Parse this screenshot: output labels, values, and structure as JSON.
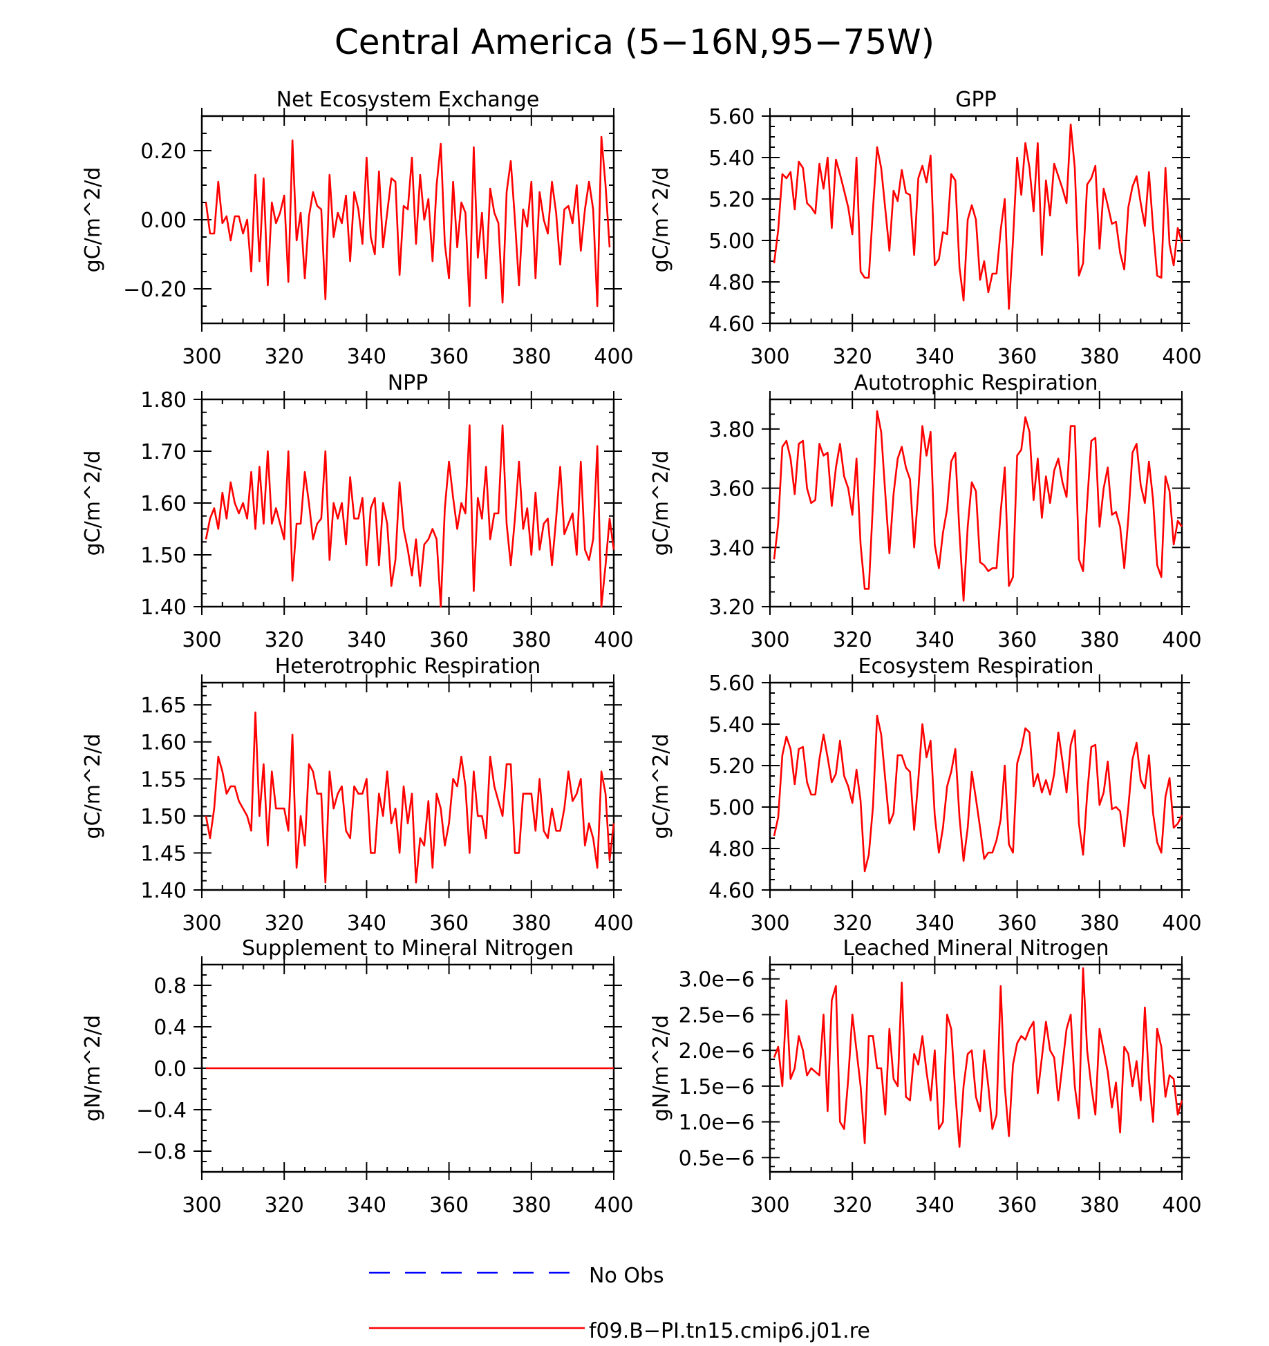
{
  "figure": {
    "title": "Central America (5−16N,95−75W)"
  },
  "legend": {
    "entries": [
      {
        "label": "No Obs",
        "color": "#0000ff",
        "style": "dashed"
      },
      {
        "label": "f09.B−PI.tn15.cmip6.j01.re",
        "color": "#ff0000",
        "style": "solid"
      }
    ]
  },
  "chart_data": [
    {
      "type": "line",
      "title": "Net Ecosystem Exchange",
      "ylabel": "gC/m^2/d",
      "xlim": [
        300,
        400
      ],
      "ylim": [
        -0.3,
        0.3
      ],
      "xticks": [
        300,
        320,
        340,
        360,
        380,
        400
      ],
      "xtick_labels": [
        "300",
        "320",
        "340",
        "360",
        "380",
        "400"
      ],
      "yticks": [
        -0.2,
        0.0,
        0.2
      ],
      "ytick_labels": [
        "−0.20",
        "0.00",
        "0.20"
      ],
      "x_start": 301,
      "color": "#ff0000",
      "values": [
        0.05,
        -0.04,
        -0.04,
        0.11,
        -0.01,
        0.01,
        -0.06,
        0.01,
        0.01,
        -0.04,
        0.0,
        -0.15,
        0.13,
        -0.12,
        0.12,
        -0.19,
        0.05,
        -0.01,
        0.02,
        0.07,
        -0.18,
        0.23,
        -0.06,
        0.02,
        -0.17,
        0.01,
        0.08,
        0.04,
        0.03,
        -0.23,
        0.13,
        -0.05,
        0.02,
        -0.01,
        0.07,
        -0.12,
        0.08,
        0.03,
        -0.07,
        0.18,
        -0.05,
        -0.1,
        0.14,
        -0.08,
        0.02,
        0.12,
        0.11,
        -0.16,
        0.04,
        0.03,
        0.18,
        -0.07,
        0.13,
        0.0,
        0.06,
        -0.12,
        0.1,
        0.22,
        -0.07,
        -0.17,
        0.11,
        -0.08,
        0.05,
        0.02,
        -0.25,
        0.21,
        -0.11,
        0.02,
        -0.17,
        0.09,
        0.02,
        -0.01,
        -0.24,
        0.08,
        0.17,
        0.0,
        -0.19,
        0.03,
        -0.02,
        0.11,
        -0.17,
        0.08,
        0.0,
        -0.04,
        0.11,
        0.02,
        -0.13,
        0.03,
        0.04,
        -0.01,
        0.1,
        -0.09,
        0.03,
        0.11,
        0.03,
        -0.25,
        0.24,
        0.1,
        -0.08
      ]
    },
    {
      "type": "line",
      "title": "GPP",
      "ylabel": "gC/m^2/d",
      "xlim": [
        300,
        400
      ],
      "ylim": [
        4.6,
        5.6
      ],
      "xticks": [
        300,
        320,
        340,
        360,
        380,
        400
      ],
      "xtick_labels": [
        "300",
        "320",
        "340",
        "360",
        "380",
        "400"
      ],
      "yticks": [
        4.6,
        4.8,
        5.0,
        5.2,
        5.4,
        5.6
      ],
      "ytick_labels": [
        "4.60",
        "4.80",
        "5.00",
        "5.20",
        "5.40",
        "5.60"
      ],
      "x_start": 301,
      "color": "#ff0000",
      "values": [
        4.89,
        5.05,
        5.32,
        5.3,
        5.33,
        5.15,
        5.38,
        5.35,
        5.18,
        5.16,
        5.13,
        5.37,
        5.25,
        5.4,
        5.06,
        5.39,
        5.32,
        5.24,
        5.16,
        5.03,
        5.4,
        4.85,
        4.82,
        4.82,
        5.15,
        5.45,
        5.35,
        5.15,
        4.95,
        5.24,
        5.19,
        5.34,
        5.23,
        5.22,
        4.93,
        5.3,
        5.36,
        5.28,
        5.41,
        4.88,
        4.91,
        5.04,
        5.03,
        5.32,
        5.29,
        4.87,
        4.71,
        5.1,
        5.17,
        5.1,
        4.81,
        4.9,
        4.75,
        4.84,
        4.84,
        5.05,
        5.2,
        4.67,
        5.0,
        5.4,
        5.22,
        5.47,
        5.35,
        5.14,
        5.47,
        4.93,
        5.29,
        5.12,
        5.37,
        5.31,
        5.25,
        5.18,
        5.56,
        5.35,
        4.83,
        4.89,
        5.27,
        5.3,
        5.36,
        4.96,
        5.25,
        5.17,
        5.08,
        5.09,
        4.94,
        4.86,
        5.16,
        5.26,
        5.31,
        5.18,
        5.07,
        5.33,
        5.06,
        4.83,
        4.82,
        5.35,
        4.98,
        4.88,
        5.06,
        4.99
      ]
    },
    {
      "type": "line",
      "title": "NPP",
      "ylabel": "gC/m^2/d",
      "xlim": [
        300,
        400
      ],
      "ylim": [
        1.4,
        1.8
      ],
      "xticks": [
        300,
        320,
        340,
        360,
        380,
        400
      ],
      "xtick_labels": [
        "300",
        "320",
        "340",
        "360",
        "380",
        "400"
      ],
      "yticks": [
        1.4,
        1.5,
        1.6,
        1.7,
        1.8
      ],
      "ytick_labels": [
        "1.40",
        "1.50",
        "1.60",
        "1.70",
        "1.80"
      ],
      "x_start": 301,
      "color": "#ff0000",
      "values": [
        1.53,
        1.57,
        1.59,
        1.55,
        1.62,
        1.57,
        1.64,
        1.6,
        1.58,
        1.6,
        1.57,
        1.66,
        1.55,
        1.67,
        1.56,
        1.7,
        1.56,
        1.59,
        1.56,
        1.53,
        1.7,
        1.45,
        1.56,
        1.56,
        1.66,
        1.6,
        1.53,
        1.56,
        1.57,
        1.7,
        1.49,
        1.6,
        1.57,
        1.6,
        1.52,
        1.65,
        1.57,
        1.57,
        1.61,
        1.48,
        1.59,
        1.61,
        1.48,
        1.6,
        1.56,
        1.44,
        1.49,
        1.64,
        1.55,
        1.51,
        1.46,
        1.53,
        1.44,
        1.52,
        1.53,
        1.55,
        1.53,
        1.4,
        1.59,
        1.68,
        1.61,
        1.55,
        1.6,
        1.58,
        1.75,
        1.43,
        1.61,
        1.57,
        1.67,
        1.53,
        1.58,
        1.58,
        1.75,
        1.56,
        1.48,
        1.57,
        1.68,
        1.55,
        1.59,
        1.5,
        1.62,
        1.51,
        1.56,
        1.57,
        1.48,
        1.57,
        1.67,
        1.54,
        1.56,
        1.58,
        1.5,
        1.68,
        1.51,
        1.49,
        1.53,
        1.71,
        1.4,
        1.48,
        1.57,
        1.51
      ]
    },
    {
      "type": "line",
      "title": "Autotrophic Respiration",
      "ylabel": "gC/m^2/d",
      "xlim": [
        300,
        400
      ],
      "ylim": [
        3.2,
        3.9
      ],
      "xticks": [
        300,
        320,
        340,
        360,
        380,
        400
      ],
      "xtick_labels": [
        "300",
        "320",
        "340",
        "360",
        "380",
        "400"
      ],
      "yticks": [
        3.2,
        3.4,
        3.6,
        3.8
      ],
      "ytick_labels": [
        "3.20",
        "3.40",
        "3.60",
        "3.80"
      ],
      "x_start": 301,
      "color": "#ff0000",
      "values": [
        3.36,
        3.48,
        3.74,
        3.76,
        3.7,
        3.58,
        3.75,
        3.76,
        3.6,
        3.55,
        3.56,
        3.75,
        3.71,
        3.72,
        3.54,
        3.67,
        3.75,
        3.64,
        3.6,
        3.51,
        3.7,
        3.41,
        3.26,
        3.26,
        3.55,
        3.86,
        3.79,
        3.58,
        3.38,
        3.58,
        3.7,
        3.74,
        3.67,
        3.63,
        3.4,
        3.59,
        3.81,
        3.71,
        3.79,
        3.41,
        3.33,
        3.45,
        3.53,
        3.69,
        3.72,
        3.45,
        3.22,
        3.47,
        3.62,
        3.59,
        3.35,
        3.34,
        3.32,
        3.33,
        3.33,
        3.52,
        3.67,
        3.27,
        3.3,
        3.71,
        3.73,
        3.84,
        3.79,
        3.56,
        3.7,
        3.5,
        3.64,
        3.55,
        3.66,
        3.7,
        3.62,
        3.57,
        3.81,
        3.81,
        3.36,
        3.32,
        3.55,
        3.76,
        3.77,
        3.47,
        3.6,
        3.67,
        3.51,
        3.52,
        3.47,
        3.33,
        3.5,
        3.72,
        3.75,
        3.61,
        3.55,
        3.69,
        3.56,
        3.34,
        3.3,
        3.64,
        3.59,
        3.41,
        3.49,
        3.47
      ]
    },
    {
      "type": "line",
      "title": "Heterotrophic Respiration",
      "ylabel": "gC/m^2/d",
      "xlim": [
        300,
        400
      ],
      "ylim": [
        1.4,
        1.68
      ],
      "xticks": [
        300,
        320,
        340,
        360,
        380,
        400
      ],
      "xtick_labels": [
        "300",
        "320",
        "340",
        "360",
        "380",
        "400"
      ],
      "yticks": [
        1.4,
        1.45,
        1.5,
        1.55,
        1.6,
        1.65
      ],
      "ytick_labels": [
        "1.40",
        "1.45",
        "1.50",
        "1.55",
        "1.60",
        "1.65"
      ],
      "x_start": 301,
      "color": "#ff0000",
      "values": [
        1.5,
        1.47,
        1.51,
        1.58,
        1.56,
        1.53,
        1.54,
        1.54,
        1.52,
        1.51,
        1.5,
        1.48,
        1.64,
        1.5,
        1.57,
        1.46,
        1.56,
        1.51,
        1.51,
        1.51,
        1.48,
        1.61,
        1.43,
        1.5,
        1.46,
        1.57,
        1.56,
        1.53,
        1.53,
        1.41,
        1.56,
        1.51,
        1.53,
        1.54,
        1.48,
        1.47,
        1.54,
        1.53,
        1.53,
        1.55,
        1.45,
        1.45,
        1.53,
        1.5,
        1.56,
        1.49,
        1.51,
        1.45,
        1.54,
        1.49,
        1.53,
        1.41,
        1.47,
        1.46,
        1.52,
        1.43,
        1.53,
        1.51,
        1.46,
        1.49,
        1.55,
        1.54,
        1.58,
        1.54,
        1.45,
        1.56,
        1.5,
        1.5,
        1.47,
        1.58,
        1.54,
        1.52,
        1.5,
        1.57,
        1.57,
        1.45,
        1.45,
        1.53,
        1.53,
        1.53,
        1.48,
        1.55,
        1.48,
        1.47,
        1.51,
        1.48,
        1.48,
        1.51,
        1.56,
        1.52,
        1.53,
        1.55,
        1.46,
        1.49,
        1.47,
        1.43,
        1.56,
        1.53,
        1.44,
        1.49
      ]
    },
    {
      "type": "line",
      "title": "Ecosystem Respiration",
      "ylabel": "gC/m^2/d",
      "xlim": [
        300,
        400
      ],
      "ylim": [
        4.6,
        5.6
      ],
      "xticks": [
        300,
        320,
        340,
        360,
        380,
        400
      ],
      "xtick_labels": [
        "300",
        "320",
        "340",
        "360",
        "380",
        "400"
      ],
      "yticks": [
        4.6,
        4.8,
        5.0,
        5.2,
        5.4,
        5.6
      ],
      "ytick_labels": [
        "4.60",
        "4.80",
        "5.00",
        "5.20",
        "5.40",
        "5.60"
      ],
      "x_start": 301,
      "color": "#ff0000",
      "values": [
        4.86,
        4.95,
        5.25,
        5.34,
        5.28,
        5.11,
        5.28,
        5.29,
        5.12,
        5.06,
        5.06,
        5.23,
        5.35,
        5.24,
        5.12,
        5.16,
        5.32,
        5.15,
        5.1,
        5.02,
        5.18,
        5.03,
        4.69,
        4.77,
        5.0,
        5.44,
        5.35,
        5.13,
        4.92,
        4.97,
        5.25,
        5.25,
        5.19,
        5.17,
        4.89,
        5.13,
        5.4,
        5.24,
        5.32,
        4.96,
        4.78,
        4.9,
        5.1,
        5.17,
        5.28,
        4.95,
        4.74,
        4.9,
        5.17,
        5.04,
        4.9,
        4.75,
        4.78,
        4.78,
        4.84,
        4.94,
        5.2,
        4.82,
        4.78,
        5.21,
        5.28,
        5.38,
        5.36,
        5.1,
        5.16,
        5.07,
        5.13,
        5.06,
        5.16,
        5.36,
        5.22,
        5.07,
        5.3,
        5.37,
        4.92,
        4.77,
        5.06,
        5.29,
        5.3,
        5.01,
        5.07,
        5.22,
        4.99,
        5.0,
        4.98,
        4.81,
        5.0,
        5.23,
        5.31,
        5.13,
        5.09,
        5.25,
        4.97,
        4.83,
        4.78,
        5.05,
        5.14,
        4.9,
        4.92,
        4.96
      ]
    },
    {
      "type": "line",
      "title": "Supplement to Mineral Nitrogen",
      "ylabel": "gN/m^2/d",
      "xlim": [
        300,
        400
      ],
      "ylim": [
        -1.0,
        1.0
      ],
      "xticks": [
        300,
        320,
        340,
        360,
        380,
        400
      ],
      "xtick_labels": [
        "300",
        "320",
        "340",
        "360",
        "380",
        "400"
      ],
      "yticks": [
        -0.8,
        -0.4,
        0.0,
        0.4,
        0.8
      ],
      "ytick_labels": [
        "−0.8",
        "−0.4",
        "0.0",
        "0.4",
        "0.8"
      ],
      "x_start": 301,
      "color": "#ff0000",
      "values": [
        0,
        0,
        0,
        0,
        0,
        0,
        0,
        0,
        0,
        0,
        0,
        0,
        0,
        0,
        0,
        0,
        0,
        0,
        0,
        0,
        0,
        0,
        0,
        0,
        0,
        0,
        0,
        0,
        0,
        0,
        0,
        0,
        0,
        0,
        0,
        0,
        0,
        0,
        0,
        0,
        0,
        0,
        0,
        0,
        0,
        0,
        0,
        0,
        0,
        0,
        0,
        0,
        0,
        0,
        0,
        0,
        0,
        0,
        0,
        0,
        0,
        0,
        0,
        0,
        0,
        0,
        0,
        0,
        0,
        0,
        0,
        0,
        0,
        0,
        0,
        0,
        0,
        0,
        0,
        0,
        0,
        0,
        0,
        0,
        0,
        0,
        0,
        0,
        0,
        0,
        0,
        0,
        0,
        0,
        0,
        0,
        0,
        0,
        0,
        0
      ]
    },
    {
      "type": "line",
      "title": "Leached Mineral Nitrogen",
      "ylabel": "gN/m^2/d",
      "xlim": [
        300,
        400
      ],
      "ylim": [
        3e-07,
        3.2e-06
      ],
      "xticks": [
        300,
        320,
        340,
        360,
        380,
        400
      ],
      "xtick_labels": [
        "300",
        "320",
        "340",
        "360",
        "380",
        "400"
      ],
      "yticks": [
        5e-07,
        1e-06,
        1.5e-06,
        2e-06,
        2.5e-06,
        3e-06
      ],
      "ytick_labels": [
        "0.5e−6",
        "1.0e−6",
        "1.5e−6",
        "2.0e−6",
        "2.5e−6",
        "3.0e−6"
      ],
      "x_start": 301,
      "color": "#ff0000",
      "values": [
        1.9e-06,
        2.05e-06,
        1.5e-06,
        2.7e-06,
        1.6e-06,
        1.75e-06,
        2.2e-06,
        2e-06,
        1.65e-06,
        1.75e-06,
        1.7e-06,
        1.65e-06,
        2.5e-06,
        1.15e-06,
        2.7e-06,
        2.9e-06,
        1e-06,
        9e-07,
        1.6e-06,
        2.5e-06,
        2e-06,
        1.5e-06,
        7e-07,
        2.2e-06,
        2.2e-06,
        1.75e-06,
        1.75e-06,
        1.1e-06,
        2.3e-06,
        1.6e-06,
        1.5e-06,
        2.95e-06,
        1.35e-06,
        1.3e-06,
        1.95e-06,
        1.8e-06,
        2.2e-06,
        1.7e-06,
        1.3e-06,
        2e-06,
        9e-07,
        1e-06,
        2.5e-06,
        2.3e-06,
        1.4e-06,
        6.5e-07,
        1.5e-06,
        1.95e-06,
        2e-06,
        1.35e-06,
        1.15e-06,
        2e-06,
        1.5e-06,
        9e-07,
        1.1e-06,
        2.9e-06,
        1.5e-06,
        8e-07,
        1.8e-06,
        2.1e-06,
        2.2e-06,
        2.15e-06,
        2.3e-06,
        2.4e-06,
        1.4e-06,
        1.9e-06,
        2.4e-06,
        2e-06,
        1.9e-06,
        1.3e-06,
        1.8e-06,
        2.3e-06,
        2.5e-06,
        1.5e-06,
        1.05e-06,
        3.15e-06,
        2e-06,
        1.5e-06,
        1.1e-06,
        2.3e-06,
        2e-06,
        1.7e-06,
        1.2e-06,
        1.55e-06,
        8.5e-07,
        2.05e-06,
        1.95e-06,
        1.5e-06,
        1.85e-06,
        1.3e-06,
        2.6e-06,
        1.6e-06,
        1e-06,
        2.3e-06,
        2.05e-06,
        1.35e-06,
        1.65e-06,
        1.6e-06,
        1.1e-06,
        1.3e-06
      ]
    }
  ]
}
